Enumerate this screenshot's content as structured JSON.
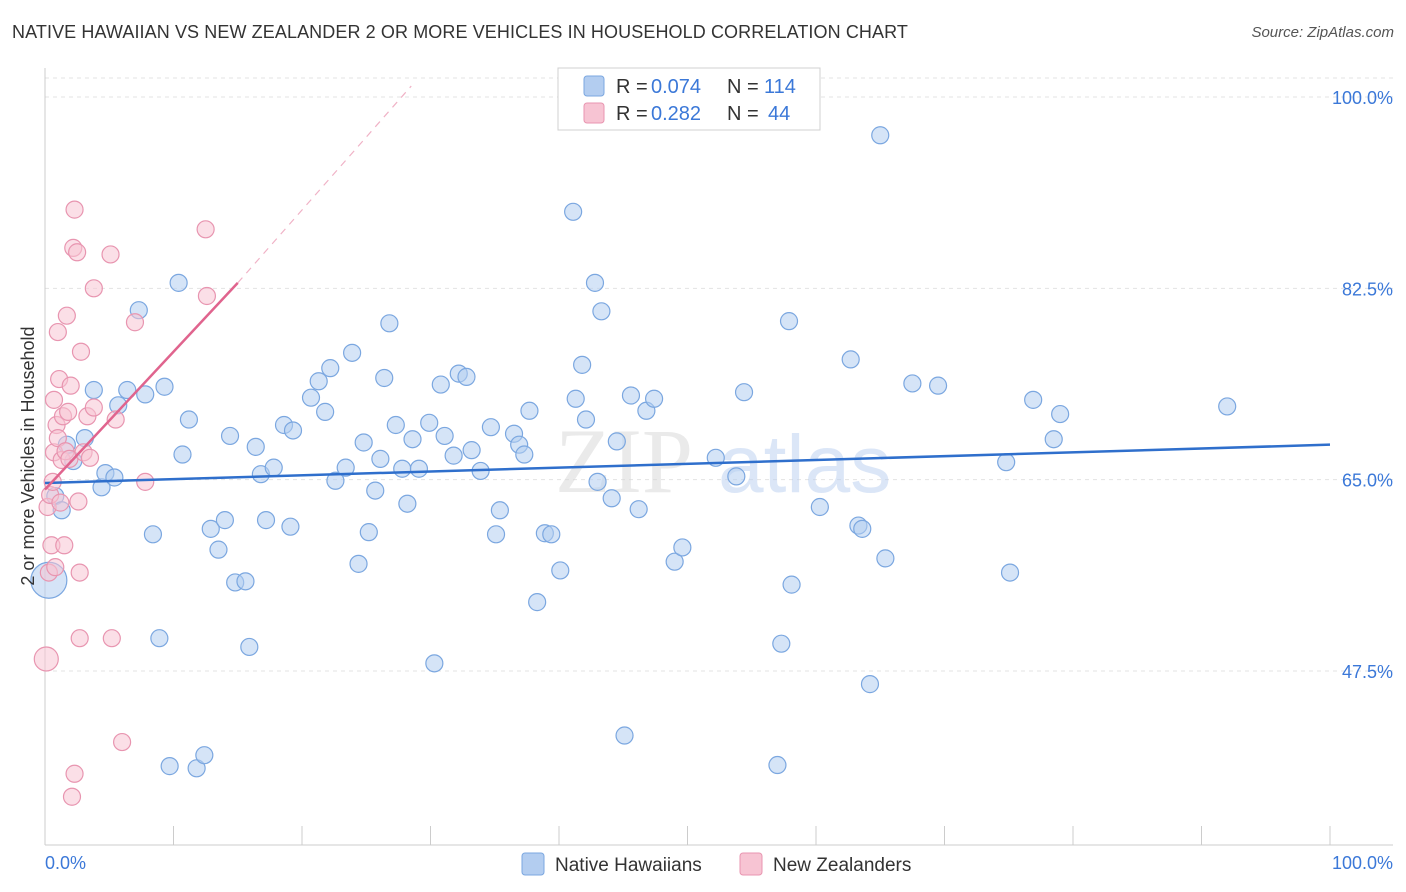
{
  "title": "NATIVE HAWAIIAN VS NEW ZEALANDER 2 OR MORE VEHICLES IN HOUSEHOLD CORRELATION CHART",
  "source": "Source: ZipAtlas.com",
  "chart_data": {
    "type": "scatter",
    "title": "NATIVE HAWAIIAN VS NEW ZEALANDER 2 OR MORE VEHICLES IN HOUSEHOLD CORRELATION CHART",
    "xlabel": "",
    "ylabel": "2 or more Vehicles in Household",
    "xlim": [
      0,
      100
    ],
    "ylim": [
      30,
      103
    ],
    "x_tick_labels": [
      "0.0%",
      "100.0%"
    ],
    "y_ticks": [
      47.5,
      65.0,
      82.5,
      100.0
    ],
    "y_tick_labels": [
      "47.5%",
      "65.0%",
      "82.5%",
      "100.0%"
    ],
    "grid": true,
    "legend_position": "top-center",
    "stats": [
      {
        "r_label": "R =",
        "r_value": "0.074",
        "n_label": "N =",
        "n_value": "114"
      },
      {
        "r_label": "R =",
        "r_value": "0.282",
        "n_label": "N =",
        "n_value": "44"
      }
    ],
    "watermark": "ZIPatlas",
    "series": [
      {
        "name": "Native Hawaiians",
        "color": "#7ba7e0",
        "fill": "#b3cdf0",
        "trend_color": "#2f6fcc",
        "trend": {
          "x0": 0,
          "y0": 64.7,
          "x1": 100,
          "y1": 68.2
        },
        "points": [
          [
            0.3,
            55.8
          ],
          [
            0.8,
            63.5
          ],
          [
            1.3,
            62.2
          ],
          [
            1.7,
            68.2
          ],
          [
            2.2,
            66.7
          ],
          [
            3.1,
            68.8
          ],
          [
            3.8,
            73.2
          ],
          [
            4.4,
            64.3
          ],
          [
            4.7,
            65.6
          ],
          [
            5.4,
            65.2
          ],
          [
            5.7,
            71.8
          ],
          [
            6.4,
            73.2
          ],
          [
            7.3,
            80.5
          ],
          [
            7.8,
            72.8
          ],
          [
            8.4,
            60.0
          ],
          [
            8.9,
            50.5
          ],
          [
            9.3,
            73.5
          ],
          [
            9.7,
            38.8
          ],
          [
            10.4,
            83.0
          ],
          [
            10.7,
            67.3
          ],
          [
            11.2,
            70.5
          ],
          [
            11.8,
            38.6
          ],
          [
            12.4,
            39.8
          ],
          [
            12.9,
            60.5
          ],
          [
            13.5,
            58.6
          ],
          [
            14.0,
            61.3
          ],
          [
            14.4,
            69.0
          ],
          [
            14.8,
            55.6
          ],
          [
            15.6,
            55.7
          ],
          [
            15.9,
            49.7
          ],
          [
            16.4,
            68.0
          ],
          [
            16.8,
            65.5
          ],
          [
            17.2,
            61.3
          ],
          [
            17.8,
            66.1
          ],
          [
            18.6,
            70.0
          ],
          [
            19.1,
            60.7
          ],
          [
            19.3,
            69.5
          ],
          [
            20.7,
            72.5
          ],
          [
            21.3,
            74.0
          ],
          [
            21.8,
            71.2
          ],
          [
            22.2,
            75.2
          ],
          [
            22.6,
            64.9
          ],
          [
            23.4,
            66.1
          ],
          [
            23.9,
            76.6
          ],
          [
            24.4,
            57.3
          ],
          [
            24.8,
            68.4
          ],
          [
            25.2,
            60.2
          ],
          [
            25.7,
            64.0
          ],
          [
            26.1,
            66.9
          ],
          [
            26.4,
            74.3
          ],
          [
            26.8,
            79.3
          ],
          [
            27.3,
            70.0
          ],
          [
            27.8,
            66.0
          ],
          [
            28.2,
            62.8
          ],
          [
            28.6,
            68.7
          ],
          [
            29.1,
            66.0
          ],
          [
            29.9,
            70.2
          ],
          [
            30.3,
            48.2
          ],
          [
            30.8,
            73.7
          ],
          [
            31.1,
            69.0
          ],
          [
            31.8,
            67.2
          ],
          [
            32.2,
            74.7
          ],
          [
            32.8,
            74.4
          ],
          [
            33.2,
            67.7
          ],
          [
            33.9,
            65.8
          ],
          [
            34.7,
            69.8
          ],
          [
            35.1,
            60.0
          ],
          [
            35.4,
            62.2
          ],
          [
            36.5,
            69.2
          ],
          [
            36.9,
            68.2
          ],
          [
            37.3,
            67.3
          ],
          [
            37.7,
            71.3
          ],
          [
            38.3,
            53.8
          ],
          [
            38.9,
            60.1
          ],
          [
            39.4,
            60.0
          ],
          [
            40.1,
            56.7
          ],
          [
            41.1,
            89.5
          ],
          [
            41.3,
            72.4
          ],
          [
            41.8,
            75.5
          ],
          [
            42.1,
            70.5
          ],
          [
            42.8,
            83.0
          ],
          [
            43.0,
            64.8
          ],
          [
            43.3,
            80.4
          ],
          [
            44.1,
            63.3
          ],
          [
            44.5,
            68.5
          ],
          [
            45.1,
            41.6
          ],
          [
            45.6,
            72.7
          ],
          [
            46.2,
            62.3
          ],
          [
            46.8,
            71.3
          ],
          [
            47.4,
            72.4
          ],
          [
            49.0,
            57.5
          ],
          [
            49.6,
            58.8
          ],
          [
            52.2,
            67.0
          ],
          [
            53.8,
            65.3
          ],
          [
            54.4,
            73.0
          ],
          [
            57.0,
            38.9
          ],
          [
            57.3,
            50.0
          ],
          [
            57.9,
            79.5
          ],
          [
            58.1,
            55.4
          ],
          [
            60.3,
            62.5
          ],
          [
            62.7,
            76.0
          ],
          [
            63.3,
            60.8
          ],
          [
            63.6,
            60.5
          ],
          [
            64.2,
            46.3
          ],
          [
            65.0,
            96.5
          ],
          [
            65.4,
            57.8
          ],
          [
            67.5,
            73.8
          ],
          [
            69.5,
            73.6
          ],
          [
            74.8,
            66.6
          ],
          [
            75.1,
            56.5
          ],
          [
            76.9,
            72.3
          ],
          [
            78.5,
            68.7
          ],
          [
            79.0,
            71.0
          ],
          [
            92.0,
            71.7
          ]
        ]
      },
      {
        "name": "New Zealanders",
        "color": "#e895b0",
        "fill": "#f7c4d3",
        "trend_color": "#e0648e",
        "trend": {
          "x0": 0,
          "y0": 64.1,
          "x1": 15.0,
          "y1": 83.0
        },
        "trend_ext": {
          "x0": 15.0,
          "y0": 83.0,
          "x1": 28.5,
          "y1": 101.0
        },
        "points": [
          [
            0.1,
            48.6
          ],
          [
            0.2,
            62.5
          ],
          [
            0.3,
            56.5
          ],
          [
            0.4,
            63.6
          ],
          [
            0.5,
            59.0
          ],
          [
            0.6,
            64.8
          ],
          [
            0.7,
            72.3
          ],
          [
            0.7,
            67.5
          ],
          [
            0.8,
            57.0
          ],
          [
            0.9,
            70.0
          ],
          [
            1.0,
            68.8
          ],
          [
            1.0,
            78.5
          ],
          [
            1.1,
            74.2
          ],
          [
            1.2,
            62.9
          ],
          [
            1.3,
            66.8
          ],
          [
            1.4,
            70.8
          ],
          [
            1.5,
            59.0
          ],
          [
            1.6,
            67.6
          ],
          [
            1.7,
            80.0
          ],
          [
            1.8,
            71.2
          ],
          [
            1.9,
            66.9
          ],
          [
            2.0,
            73.6
          ],
          [
            2.1,
            36.0
          ],
          [
            2.2,
            86.2
          ],
          [
            2.3,
            38.1
          ],
          [
            2.3,
            89.7
          ],
          [
            2.5,
            85.8
          ],
          [
            2.6,
            63.0
          ],
          [
            2.7,
            56.5
          ],
          [
            2.7,
            50.5
          ],
          [
            2.8,
            76.7
          ],
          [
            3.0,
            67.5
          ],
          [
            3.3,
            70.8
          ],
          [
            3.5,
            67.0
          ],
          [
            3.8,
            82.5
          ],
          [
            3.8,
            71.6
          ],
          [
            5.1,
            85.6
          ],
          [
            5.2,
            50.5
          ],
          [
            5.5,
            70.5
          ],
          [
            6.0,
            41.0
          ],
          [
            7.0,
            79.4
          ],
          [
            7.8,
            64.8
          ],
          [
            12.5,
            87.9
          ],
          [
            12.6,
            81.8
          ]
        ]
      }
    ]
  }
}
